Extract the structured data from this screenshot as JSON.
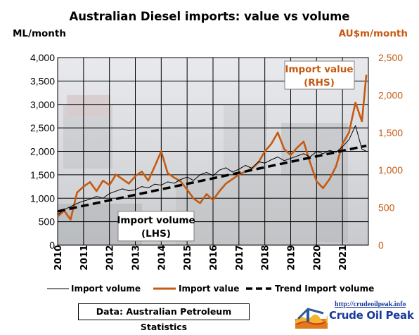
{
  "chart_data": {
    "type": "line",
    "title": "Australian Diesel imports: value vs volume",
    "left_axis": {
      "label": "ML/month",
      "ylim": [
        0,
        4000
      ],
      "ticks": [
        0,
        500,
        1000,
        1500,
        2000,
        2500,
        3000,
        3500,
        4000
      ],
      "tick_labels": [
        "0",
        "500",
        "1,000",
        "1,500",
        "2,000",
        "2,500",
        "3,000",
        "3,500",
        "4,000"
      ]
    },
    "right_axis": {
      "label": "AU$m/month",
      "ylim": [
        0,
        2500
      ],
      "ticks": [
        0,
        500,
        1000,
        1500,
        2000,
        2500
      ],
      "tick_labels": [
        "0",
        "500",
        "1,000",
        "1,500",
        "2,000",
        "2,500"
      ],
      "color": "#c55a11"
    },
    "x_axis": {
      "xlim": [
        2010,
        2022
      ],
      "tick_labels": [
        "2010",
        "2011",
        "2012",
        "2013",
        "2014",
        "2015",
        "2016",
        "2017",
        "2018",
        "2019",
        "2020",
        "2021"
      ]
    },
    "grid": true,
    "legend_placement": "bottom",
    "series": [
      {
        "name": "Import volume",
        "axis": "left",
        "color": "#000000",
        "points": [
          [
            2010.0,
            650
          ],
          [
            2010.25,
            760
          ],
          [
            2010.5,
            820
          ],
          [
            2010.75,
            890
          ],
          [
            2011.0,
            940
          ],
          [
            2011.25,
            980
          ],
          [
            2011.5,
            1040
          ],
          [
            2011.75,
            1000
          ],
          [
            2012.0,
            1100
          ],
          [
            2012.25,
            1150
          ],
          [
            2012.5,
            1200
          ],
          [
            2012.75,
            1160
          ],
          [
            2013.0,
            1180
          ],
          [
            2013.25,
            1250
          ],
          [
            2013.5,
            1220
          ],
          [
            2013.75,
            1300
          ],
          [
            2014.0,
            1280
          ],
          [
            2014.25,
            1350
          ],
          [
            2014.5,
            1320
          ],
          [
            2014.75,
            1400
          ],
          [
            2015.0,
            1450
          ],
          [
            2015.25,
            1380
          ],
          [
            2015.5,
            1500
          ],
          [
            2015.75,
            1550
          ],
          [
            2016.0,
            1480
          ],
          [
            2016.25,
            1600
          ],
          [
            2016.5,
            1650
          ],
          [
            2016.75,
            1560
          ],
          [
            2017.0,
            1620
          ],
          [
            2017.25,
            1700
          ],
          [
            2017.5,
            1640
          ],
          [
            2017.75,
            1780
          ],
          [
            2018.0,
            1750
          ],
          [
            2018.25,
            1820
          ],
          [
            2018.5,
            1880
          ],
          [
            2018.75,
            1800
          ],
          [
            2019.0,
            1850
          ],
          [
            2019.25,
            1900
          ],
          [
            2019.5,
            1950
          ],
          [
            2019.75,
            1880
          ],
          [
            2020.0,
            2000
          ],
          [
            2020.25,
            1950
          ],
          [
            2020.5,
            2020
          ],
          [
            2020.75,
            1980
          ],
          [
            2021.0,
            2100
          ],
          [
            2021.25,
            2250
          ],
          [
            2021.5,
            2550
          ],
          [
            2021.75,
            2050
          ],
          [
            2021.92,
            2000
          ]
        ]
      },
      {
        "name": "Import value",
        "axis": "right",
        "color": "#c55a11",
        "points": [
          [
            2010.0,
            380
          ],
          [
            2010.25,
            460
          ],
          [
            2010.5,
            340
          ],
          [
            2010.75,
            700
          ],
          [
            2011.0,
            780
          ],
          [
            2011.25,
            840
          ],
          [
            2011.5,
            720
          ],
          [
            2011.75,
            860
          ],
          [
            2012.0,
            800
          ],
          [
            2012.25,
            940
          ],
          [
            2012.5,
            880
          ],
          [
            2012.75,
            820
          ],
          [
            2013.0,
            920
          ],
          [
            2013.25,
            980
          ],
          [
            2013.5,
            860
          ],
          [
            2013.75,
            1050
          ],
          [
            2014.0,
            1250
          ],
          [
            2014.25,
            960
          ],
          [
            2014.5,
            900
          ],
          [
            2014.75,
            850
          ],
          [
            2015.0,
            740
          ],
          [
            2015.25,
            620
          ],
          [
            2015.5,
            560
          ],
          [
            2015.75,
            680
          ],
          [
            2016.0,
            600
          ],
          [
            2016.25,
            720
          ],
          [
            2016.5,
            820
          ],
          [
            2016.75,
            880
          ],
          [
            2017.0,
            940
          ],
          [
            2017.25,
            980
          ],
          [
            2017.5,
            1020
          ],
          [
            2017.75,
            1100
          ],
          [
            2018.0,
            1250
          ],
          [
            2018.25,
            1350
          ],
          [
            2018.5,
            1500
          ],
          [
            2018.75,
            1280
          ],
          [
            2019.0,
            1200
          ],
          [
            2019.25,
            1300
          ],
          [
            2019.5,
            1380
          ],
          [
            2019.75,
            1100
          ],
          [
            2020.0,
            850
          ],
          [
            2020.25,
            760
          ],
          [
            2020.5,
            880
          ],
          [
            2020.75,
            1050
          ],
          [
            2021.0,
            1350
          ],
          [
            2021.25,
            1500
          ],
          [
            2021.5,
            1900
          ],
          [
            2021.75,
            1650
          ],
          [
            2021.92,
            2270
          ]
        ]
      },
      {
        "name": "Trend Import volume",
        "axis": "left",
        "color": "#000000",
        "style": "dashed",
        "points": [
          [
            2010.0,
            720
          ],
          [
            2021.92,
            2120
          ]
        ]
      }
    ],
    "annotations": [
      {
        "text": "Import value\n(RHS)",
        "color": "#c55a11"
      },
      {
        "text": "Import volume\n(LHS)",
        "color": "#000000"
      }
    ]
  },
  "footer": {
    "source": "Data: Australian Petroleum Statistics",
    "logo_url": "http://crudeoilpeak.info",
    "logo_name": "Crude Oil Peak"
  }
}
